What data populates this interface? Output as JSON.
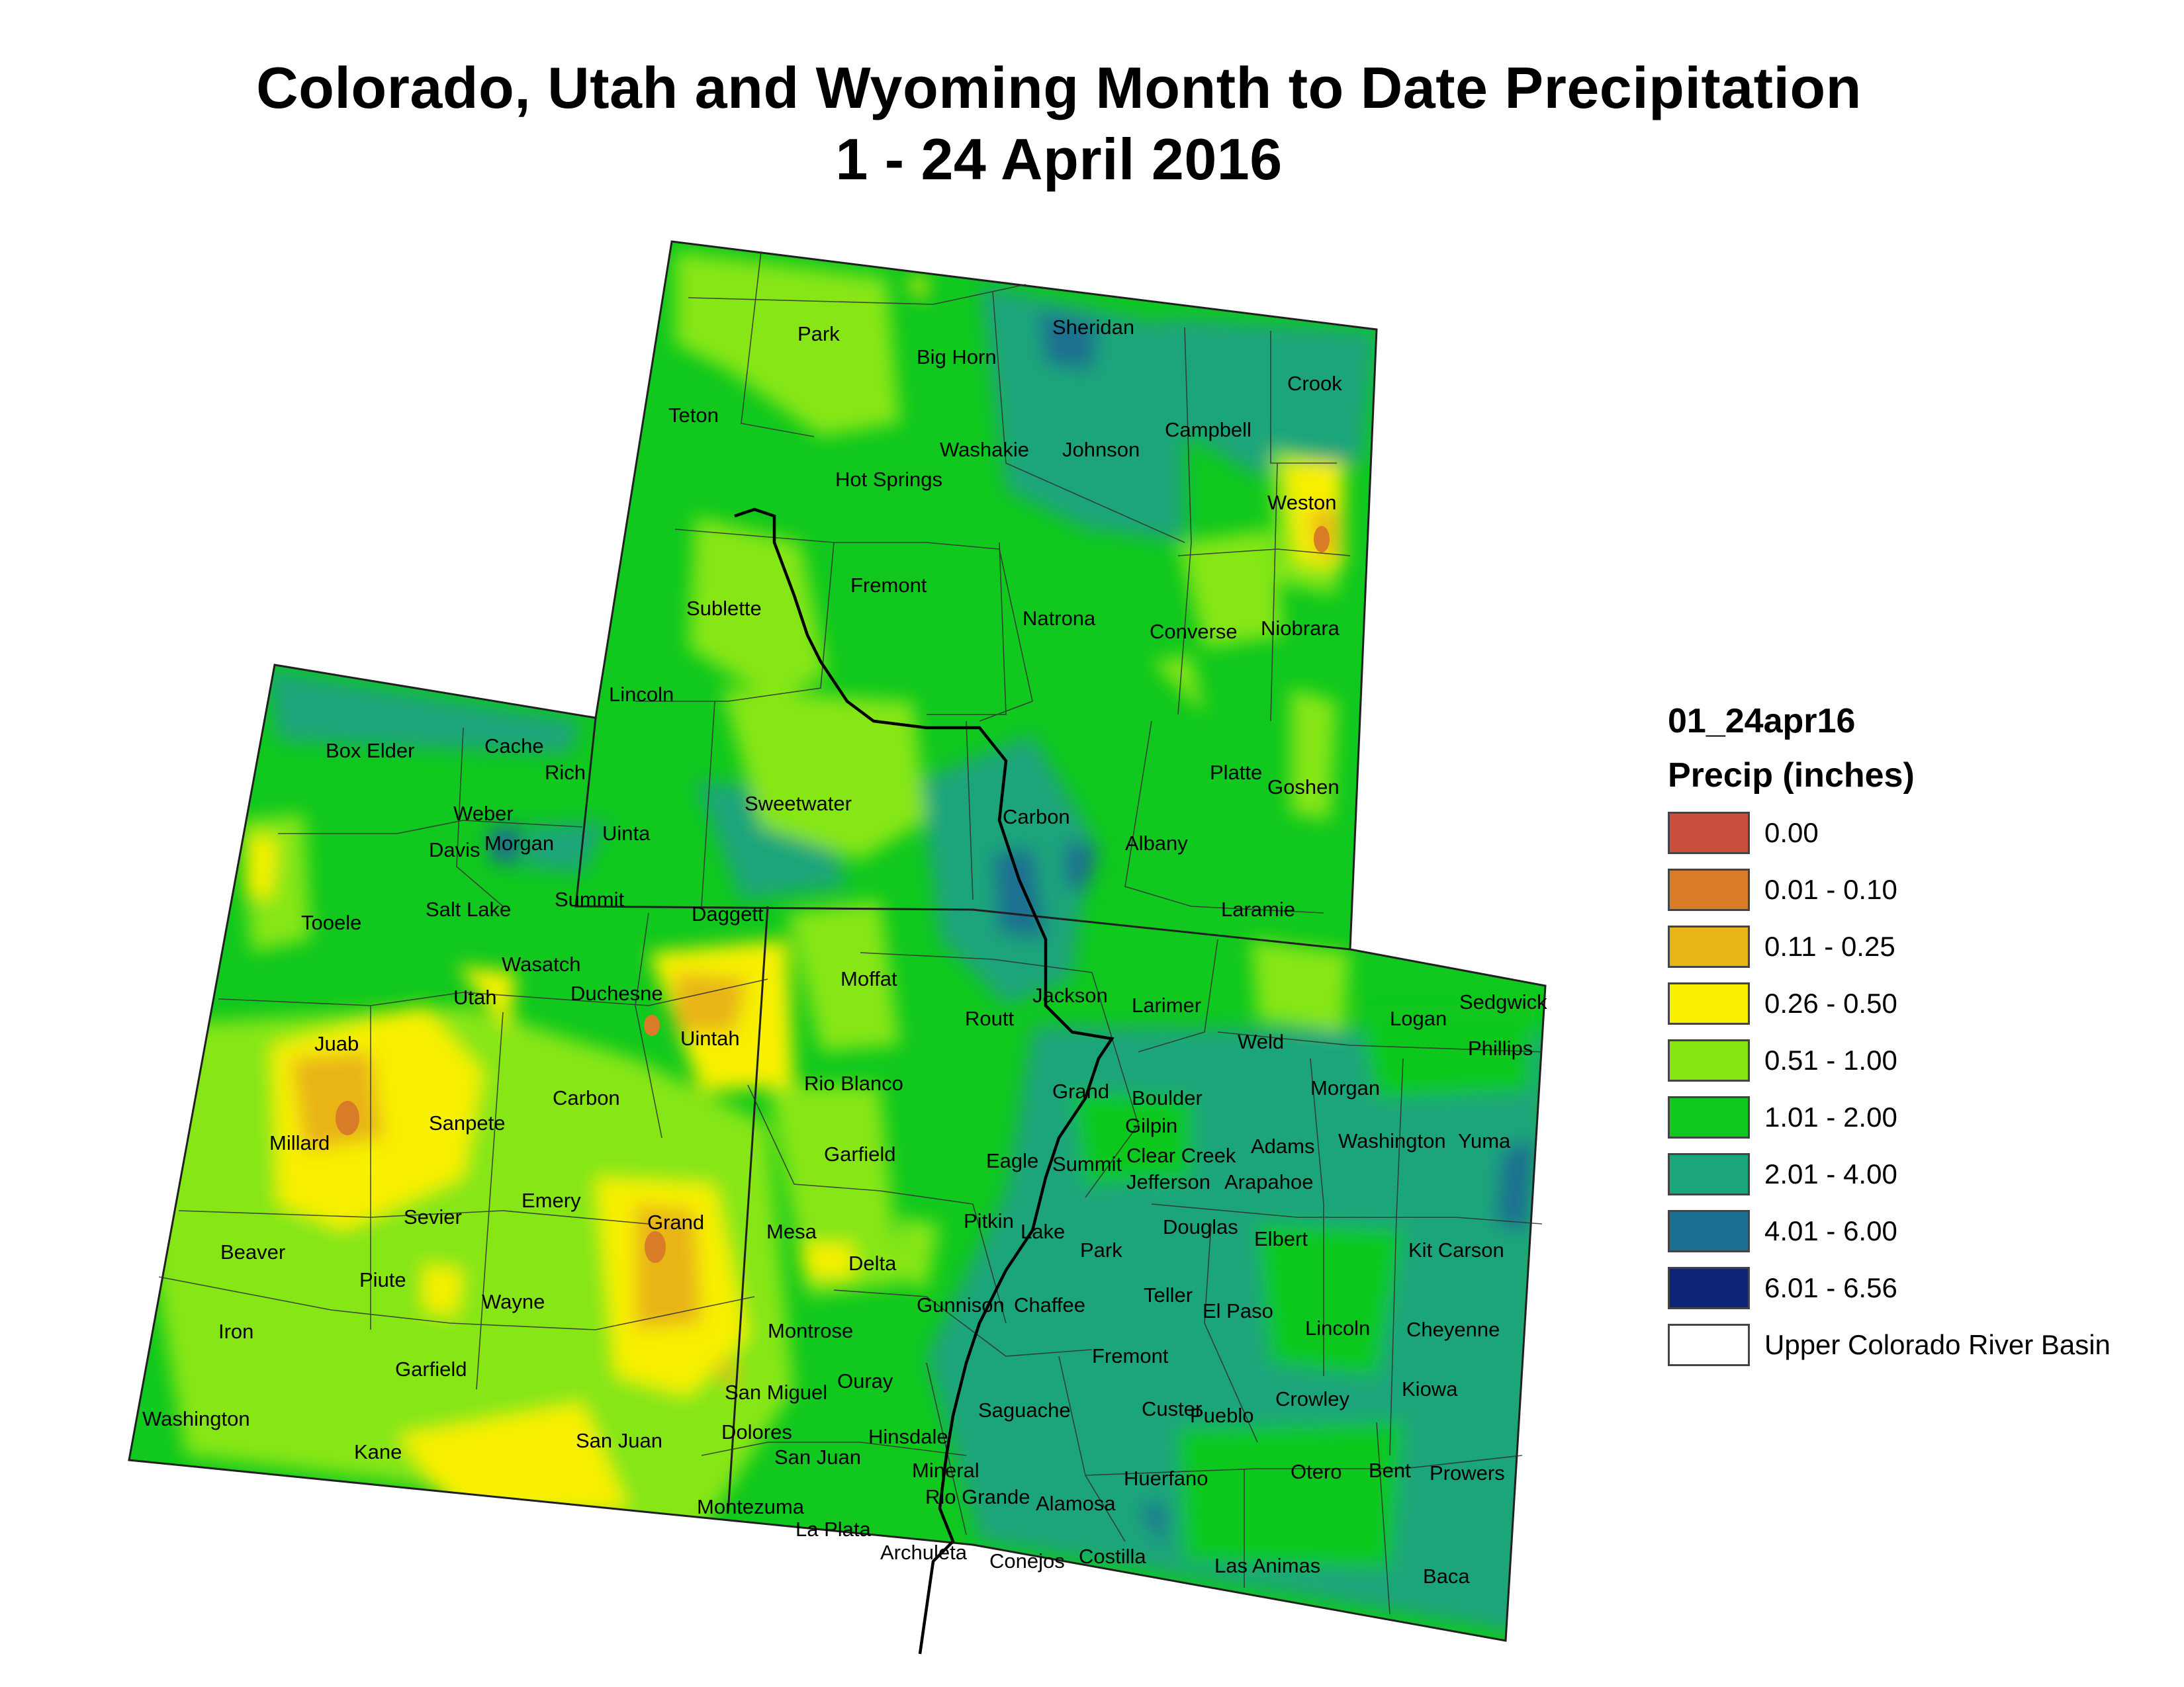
{
  "title": {
    "line1": "Colorado, Utah and Wyoming Month to Date Precipitation",
    "line2": "1 - 24 April 2016"
  },
  "legend": {
    "layer_name": "01_24apr16",
    "field_name": "Precip (inches)",
    "classes": [
      {
        "label": "0.00",
        "color": "#c8503c"
      },
      {
        "label": "0.01 - 0.10",
        "color": "#d97c28"
      },
      {
        "label": "0.11 - 0.25",
        "color": "#e8b418"
      },
      {
        "label": "0.26 - 0.50",
        "color": "#f8f000"
      },
      {
        "label": "0.51 - 1.00",
        "color": "#86e612"
      },
      {
        "label": "1.01 - 2.00",
        "color": "#10c81e"
      },
      {
        "label": "2.01 - 4.00",
        "color": "#1aa57a"
      },
      {
        "label": "4.01 - 6.00",
        "color": "#1a7090"
      },
      {
        "label": "6.01 - 6.56",
        "color": "#0c2478"
      }
    ],
    "basin_label": "Upper Colorado River Basin",
    "basin_color": "#ffffff"
  },
  "counties": {
    "wyoming": [
      "Park",
      "Big Horn",
      "Sheridan",
      "Crook",
      "Teton",
      "Washakie",
      "Johnson",
      "Campbell",
      "Hot Springs",
      "Weston",
      "Fremont",
      "Sublette",
      "Natrona",
      "Converse",
      "Niobrara",
      "Lincoln",
      "Platte",
      "Goshen",
      "Sweetwater",
      "Carbon",
      "Uinta",
      "Albany",
      "Laramie"
    ],
    "utah": [
      "Box Elder",
      "Cache",
      "Rich",
      "Weber",
      "Morgan",
      "Davis",
      "Tooele",
      "Salt Lake",
      "Summit",
      "Daggett",
      "Wasatch",
      "Utah",
      "Duchesne",
      "Uintah",
      "Juab",
      "Carbon",
      "Sanpete",
      "Millard",
      "Emery",
      "Sevier",
      "Grand",
      "Beaver",
      "Piute",
      "Wayne",
      "Iron",
      "Garfield",
      "San Juan",
      "Washington",
      "Kane"
    ],
    "colorado": [
      "Moffat",
      "Jackson",
      "Larimer",
      "Sedgwick",
      "Logan",
      "Phillips",
      "Routt",
      "Weld",
      "Rio Blanco",
      "Morgan",
      "Grand",
      "Boulder",
      "Gilpin",
      "Clear Creek",
      "Adams",
      "Washington",
      "Yuma",
      "Garfield",
      "Eagle",
      "Summit",
      "Jefferson",
      "Arapahoe",
      "Mesa",
      "Pitkin",
      "Lake",
      "Douglas",
      "Elbert",
      "Park",
      "Kit Carson",
      "Delta",
      "Teller",
      "El Paso",
      "Gunnison",
      "Chaffee",
      "Lincoln",
      "Cheyenne",
      "Montrose",
      "Fremont",
      "San Miguel",
      "Ouray",
      "Kiowa",
      "Dolores",
      "Hinsdale",
      "Saguache",
      "Custer",
      "Crowley",
      "Pueblo",
      "San Juan",
      "Mineral",
      "Otero",
      "Bent",
      "Prowers",
      "Huerfano",
      "Montezuma",
      "Rio Grande",
      "Alamosa",
      "La Plata",
      "Archuleta",
      "Conejos",
      "Costilla",
      "Las Animas",
      "Baca"
    ]
  }
}
